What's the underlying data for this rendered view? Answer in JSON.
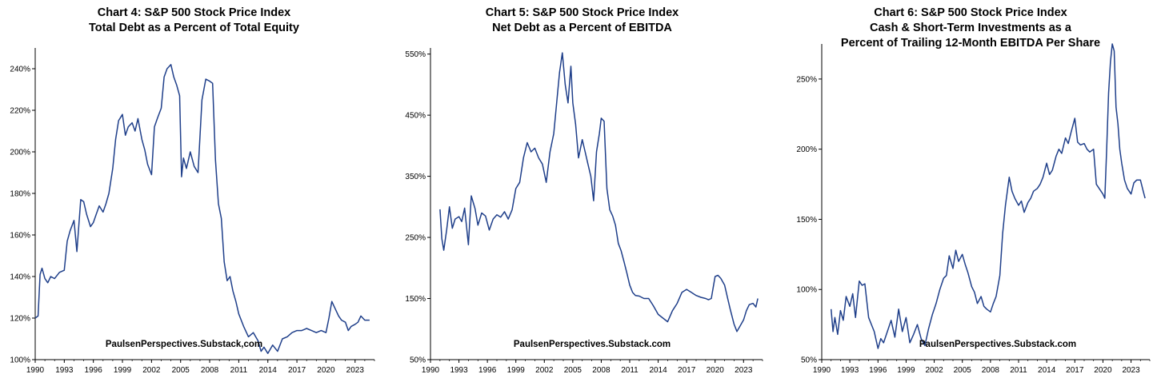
{
  "chart_data": [
    {
      "type": "line",
      "title_line1": "Chart 4: S&P 500 Stock Price Index",
      "title_line2": "Total Debt as a Percent of Total Equity",
      "title_line3": "",
      "watermark": "PaulsenPerspectives.Substack,com",
      "line_color": "#1f3f8a",
      "ylim": [
        100,
        250
      ],
      "xlim": [
        1990,
        2025
      ],
      "y_ticks": [
        100,
        120,
        140,
        160,
        180,
        200,
        220,
        240
      ],
      "y_tick_labels": [
        "100%",
        "120%",
        "140%",
        "160%",
        "180%",
        "200%",
        "220%",
        "240%"
      ],
      "x_ticks": [
        1990,
        1993,
        1996,
        1999,
        2002,
        2005,
        2008,
        2011,
        2014,
        2017,
        2020,
        2023
      ],
      "x_tick_labels": [
        "1990",
        "1993",
        "1996",
        "1999",
        "2002",
        "2005",
        "2008",
        "2011",
        "2014",
        "2017",
        "2020",
        "2023"
      ],
      "series": [
        {
          "x": [
            1990.0,
            1990.3,
            1990.5,
            1990.7,
            1991.0,
            1991.3,
            1991.6,
            1992.0,
            1992.5,
            1993.0,
            1993.3,
            1993.6,
            1994.0,
            1994.3,
            1994.7,
            1995.0,
            1995.3,
            1995.7,
            1996.0,
            1996.3,
            1996.6,
            1997.0,
            1997.3,
            1997.6,
            1998.0,
            1998.3,
            1998.6,
            1999.0,
            1999.3,
            1999.6,
            2000.0,
            2000.3,
            2000.6,
            2001.0,
            2001.3,
            2001.6,
            2002.0,
            2002.3,
            2002.6,
            2003.0,
            2003.3,
            2003.6,
            2004.0,
            2004.3,
            2004.6,
            2004.9,
            2005.1,
            2005.3,
            2005.6,
            2006.0,
            2006.4,
            2006.8,
            2007.2,
            2007.6,
            2008.0,
            2008.3,
            2008.6,
            2008.9,
            2009.2,
            2009.5,
            2009.8,
            2010.1,
            2010.4,
            2010.7,
            2011.0,
            2011.5,
            2012.0,
            2012.5,
            2013.0,
            2013.3,
            2013.6,
            2014.0,
            2014.5,
            2015.0,
            2015.5,
            2016.0,
            2016.5,
            2017.0,
            2017.5,
            2018.0,
            2018.5,
            2019.0,
            2019.5,
            2020.0,
            2020.3,
            2020.6,
            2021.0,
            2021.3,
            2021.6,
            2022.0,
            2022.3,
            2022.6,
            2023.0,
            2023.3,
            2023.6,
            2024.0,
            2024.3,
            2024.5
          ],
          "y": [
            120,
            121,
            141,
            144,
            139,
            137,
            140,
            139,
            142,
            143,
            157,
            162,
            167,
            152,
            177,
            176,
            170,
            164,
            166,
            170,
            174,
            171,
            175,
            180,
            192,
            206,
            215,
            218,
            208,
            212,
            214,
            210,
            216,
            206,
            201,
            194,
            189,
            212,
            216,
            221,
            236,
            240,
            242,
            236,
            232,
            227,
            188,
            197,
            192,
            200,
            193,
            190,
            225,
            235,
            234,
            233,
            196,
            175,
            168,
            147,
            138,
            140,
            133,
            128,
            122,
            116,
            111,
            113,
            109,
            104,
            106,
            103,
            107,
            104,
            110,
            111,
            113,
            114,
            114,
            115,
            114,
            113,
            114,
            113,
            120,
            128,
            124,
            121,
            119,
            118,
            114,
            116,
            117,
            118,
            121,
            119,
            119,
            119
          ]
        }
      ]
    },
    {
      "type": "line",
      "title_line1": "Chart 5: S&P 500 Stock Price Index",
      "title_line2": "Net Debt as a Percent of EBITDA",
      "title_line3": "",
      "watermark": "PaulsenPerspectives.Substack.com",
      "line_color": "#1f3f8a",
      "ylim": [
        50,
        560
      ],
      "xlim": [
        1990,
        2025
      ],
      "y_ticks": [
        50,
        150,
        250,
        350,
        450,
        550
      ],
      "y_tick_labels": [
        "50%",
        "150%",
        "250%",
        "350%",
        "450%",
        "550%"
      ],
      "x_ticks": [
        1990,
        1993,
        1996,
        1999,
        2002,
        2005,
        2008,
        2011,
        2014,
        2017,
        2020,
        2023
      ],
      "x_tick_labels": [
        "1990",
        "1993",
        "1996",
        "1999",
        "2002",
        "2005",
        "2008",
        "2011",
        "2014",
        "2017",
        "2020",
        "2023"
      ],
      "series": [
        {
          "x": [
            1991.0,
            1991.2,
            1991.4,
            1991.7,
            1992.0,
            1992.3,
            1992.6,
            1993.0,
            1993.3,
            1993.6,
            1994.0,
            1994.3,
            1994.7,
            1995.0,
            1995.4,
            1995.8,
            1996.2,
            1996.6,
            1997.0,
            1997.4,
            1997.8,
            1998.2,
            1998.6,
            1999.0,
            1999.4,
            1999.8,
            2000.2,
            2000.6,
            2001.0,
            2001.4,
            2001.8,
            2002.2,
            2002.6,
            2003.0,
            2003.3,
            2003.6,
            2003.9,
            2004.2,
            2004.5,
            2004.8,
            2005.0,
            2005.3,
            2005.6,
            2006.0,
            2006.3,
            2006.6,
            2006.9,
            2007.2,
            2007.5,
            2007.8,
            2008.0,
            2008.3,
            2008.6,
            2008.9,
            2009.2,
            2009.5,
            2009.8,
            2010.1,
            2010.4,
            2010.7,
            2011.0,
            2011.3,
            2011.6,
            2012.0,
            2012.5,
            2013.0,
            2013.5,
            2014.0,
            2014.5,
            2015.0,
            2015.5,
            2016.0,
            2016.5,
            2017.0,
            2017.5,
            2018.0,
            2018.5,
            2019.0,
            2019.3,
            2019.6,
            2020.0,
            2020.3,
            2020.6,
            2021.0,
            2021.3,
            2021.6,
            2022.0,
            2022.3,
            2022.6,
            2023.0,
            2023.3,
            2023.6,
            2024.0,
            2024.3,
            2024.5
          ],
          "y": [
            296,
            248,
            229,
            262,
            300,
            265,
            280,
            284,
            276,
            298,
            238,
            318,
            297,
            270,
            290,
            285,
            262,
            280,
            287,
            283,
            292,
            280,
            295,
            330,
            340,
            380,
            405,
            390,
            396,
            380,
            370,
            340,
            390,
            420,
            470,
            520,
            552,
            500,
            470,
            530,
            470,
            435,
            380,
            410,
            390,
            370,
            350,
            310,
            390,
            420,
            445,
            440,
            330,
            295,
            285,
            270,
            240,
            228,
            210,
            192,
            172,
            160,
            155,
            154,
            150,
            150,
            138,
            124,
            118,
            112,
            130,
            142,
            160,
            165,
            160,
            155,
            152,
            150,
            148,
            150,
            186,
            188,
            183,
            172,
            152,
            132,
            108,
            96,
            104,
            115,
            130,
            140,
            142,
            136,
            150
          ]
        }
      ]
    },
    {
      "type": "line",
      "title_line1": "Chart 6: S&P 500 Stock Price Index",
      "title_line2": "Cash & Short-Term Investments as a",
      "title_line3": "Percent of Trailing 12-Month EBITDA Per Share",
      "watermark": "PaulsenPerspectives.Substack.com",
      "line_color": "#1f3f8a",
      "ylim": [
        50,
        275
      ],
      "xlim": [
        1990,
        2025
      ],
      "y_ticks": [
        50,
        100,
        150,
        200,
        250
      ],
      "y_tick_labels": [
        "50%",
        "100%",
        "150%",
        "200%",
        "250%"
      ],
      "x_ticks": [
        1990,
        1993,
        1996,
        1999,
        2002,
        2005,
        2008,
        2011,
        2014,
        2017,
        2020,
        2023
      ],
      "x_tick_labels": [
        "1990",
        "1993",
        "1996",
        "1999",
        "2002",
        "2005",
        "2008",
        "2011",
        "2014",
        "2017",
        "2020",
        "2023"
      ],
      "series": [
        {
          "x": [
            1991.0,
            1991.2,
            1991.4,
            1991.7,
            1992.0,
            1992.3,
            1992.6,
            1993.0,
            1993.3,
            1993.6,
            1994.0,
            1994.3,
            1994.6,
            1995.0,
            1995.3,
            1995.6,
            1996.0,
            1996.3,
            1996.6,
            1997.0,
            1997.4,
            1997.8,
            1998.2,
            1998.6,
            1999.0,
            1999.4,
            1999.8,
            2000.2,
            2000.6,
            2001.0,
            2001.4,
            2001.8,
            2002.2,
            2002.6,
            2003.0,
            2003.3,
            2003.6,
            2004.0,
            2004.3,
            2004.6,
            2005.0,
            2005.3,
            2005.6,
            2006.0,
            2006.3,
            2006.6,
            2007.0,
            2007.3,
            2007.6,
            2008.0,
            2008.3,
            2008.6,
            2009.0,
            2009.3,
            2009.6,
            2010.0,
            2010.3,
            2010.6,
            2011.0,
            2011.3,
            2011.6,
            2012.0,
            2012.3,
            2012.6,
            2013.0,
            2013.3,
            2013.6,
            2014.0,
            2014.3,
            2014.6,
            2015.0,
            2015.3,
            2015.6,
            2016.0,
            2016.3,
            2016.6,
            2017.0,
            2017.3,
            2017.6,
            2018.0,
            2018.3,
            2018.6,
            2019.0,
            2019.3,
            2019.6,
            2020.0,
            2020.2,
            2020.4,
            2020.6,
            2020.8,
            2021.0,
            2021.2,
            2021.4,
            2021.6,
            2021.8,
            2022.0,
            2022.3,
            2022.6,
            2023.0,
            2023.3,
            2023.6,
            2024.0,
            2024.3,
            2024.5
          ],
          "y": [
            86,
            70,
            80,
            68,
            85,
            78,
            95,
            88,
            97,
            80,
            106,
            103,
            104,
            80,
            75,
            70,
            58,
            65,
            62,
            70,
            78,
            66,
            86,
            70,
            80,
            62,
            68,
            75,
            65,
            60,
            72,
            82,
            90,
            100,
            108,
            110,
            124,
            115,
            128,
            120,
            125,
            118,
            112,
            102,
            98,
            90,
            95,
            88,
            86,
            84,
            90,
            95,
            110,
            140,
            160,
            180,
            170,
            165,
            160,
            163,
            155,
            162,
            165,
            170,
            172,
            175,
            180,
            190,
            182,
            185,
            195,
            200,
            197,
            208,
            204,
            212,
            222,
            205,
            203,
            204,
            200,
            198,
            200,
            175,
            172,
            168,
            165,
            200,
            240,
            262,
            275,
            270,
            230,
            218,
            200,
            190,
            178,
            172,
            168,
            176,
            178,
            178,
            170,
            165
          ]
        }
      ]
    }
  ]
}
